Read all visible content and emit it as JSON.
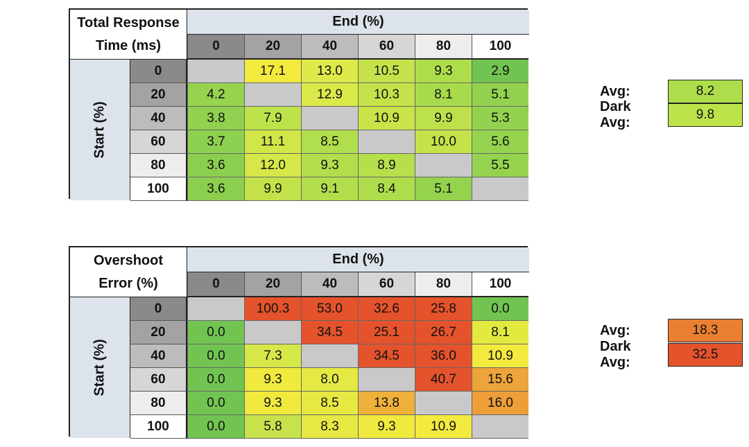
{
  "chart_data": [
    {
      "type": "table",
      "title": [
        "Total Response",
        "Time (ms)"
      ],
      "col_header": "End (%)",
      "row_header": "Start (%)",
      "columns": [
        "0",
        "20",
        "40",
        "60",
        "80",
        "100"
      ],
      "rows": [
        "0",
        "20",
        "40",
        "60",
        "80",
        "100"
      ],
      "values": [
        [
          "",
          "17.1",
          "13.0",
          "10.5",
          "9.3",
          "2.9"
        ],
        [
          "4.2",
          "",
          "12.9",
          "10.3",
          "8.1",
          "5.1"
        ],
        [
          "3.8",
          "7.9",
          "",
          "10.9",
          "9.9",
          "5.3"
        ],
        [
          "3.7",
          "11.1",
          "8.5",
          "",
          "10.0",
          "5.6"
        ],
        [
          "3.6",
          "12.0",
          "9.3",
          "8.9",
          "",
          "5.5"
        ],
        [
          "3.6",
          "9.9",
          "9.1",
          "8.4",
          "5.1",
          ""
        ]
      ],
      "colors": [
        [
          "#c9c9c9",
          "#f3ea3f",
          "#ddea4a",
          "#c6e24a",
          "#aedd4c",
          "#72c452"
        ],
        [
          "#96d34e",
          "#c9c9c9",
          "#dbe948",
          "#c6e24a",
          "#a8db4c",
          "#93d24e"
        ],
        [
          "#90d14f",
          "#bde34b",
          "#c9c9c9",
          "#c8e449",
          "#bce14b",
          "#93d24e"
        ],
        [
          "#8ed04f",
          "#d3e648",
          "#b0de4c",
          "#c9c9c9",
          "#c4e24a",
          "#95d34e"
        ],
        [
          "#8ccf4f",
          "#d6e748",
          "#b3de4c",
          "#b6df4b",
          "#c9c9c9",
          "#95d34e"
        ],
        [
          "#8ccf4f",
          "#c3e24a",
          "#b3de4c",
          "#aedd4c",
          "#95d34e",
          "#c9c9c9"
        ]
      ],
      "averages": [
        {
          "label": "Avg:",
          "value": "8.2",
          "color": "#aedd4c"
        },
        {
          "label": "Dark Avg:",
          "value": "9.8",
          "color": "#bde34b"
        }
      ]
    },
    {
      "type": "table",
      "title": [
        "Overshoot",
        "Error (%)"
      ],
      "col_header": "End (%)",
      "row_header": "Start (%)",
      "columns": [
        "0",
        "20",
        "40",
        "60",
        "80",
        "100"
      ],
      "rows": [
        "0",
        "20",
        "40",
        "60",
        "80",
        "100"
      ],
      "values": [
        [
          "",
          "100.3",
          "53.0",
          "32.6",
          "25.8",
          "0.0"
        ],
        [
          "0.0",
          "",
          "34.5",
          "25.1",
          "26.7",
          "8.1"
        ],
        [
          "0.0",
          "7.3",
          "",
          "34.5",
          "36.0",
          "10.9"
        ],
        [
          "0.0",
          "9.3",
          "8.0",
          "",
          "40.7",
          "15.6"
        ],
        [
          "0.0",
          "9.3",
          "8.5",
          "13.8",
          "",
          "16.0"
        ],
        [
          "0.0",
          "5.8",
          "8.3",
          "9.3",
          "10.9",
          ""
        ]
      ],
      "colors": [
        [
          "#c9c9c9",
          "#e4532b",
          "#e4532b",
          "#e4532b",
          "#e4532b",
          "#72c452"
        ],
        [
          "#72c452",
          "#c9c9c9",
          "#e4532b",
          "#e4532b",
          "#e4532b",
          "#e2ea40"
        ],
        [
          "#72c452",
          "#d6e748",
          "#c9c9c9",
          "#e4532b",
          "#e4532b",
          "#f3ea3f"
        ],
        [
          "#72c452",
          "#f0ea3e",
          "#e4e944",
          "#c9c9c9",
          "#e4532b",
          "#eda43a"
        ],
        [
          "#72c452",
          "#f0ea3e",
          "#e6e943",
          "#efb13a",
          "#c9c9c9",
          "#ed9e39"
        ],
        [
          "#72c452",
          "#c7e24a",
          "#e6e943",
          "#f0ea3e",
          "#f3ea3f",
          "#c9c9c9"
        ]
      ],
      "averages": [
        {
          "label": "Avg:",
          "value": "18.3",
          "color": "#ea7f32"
        },
        {
          "label": "Dark Avg:",
          "value": "32.5",
          "color": "#e4532b"
        }
      ]
    }
  ],
  "style": {
    "header_gradient": [
      "#8a8a8a",
      "#a3a3a3",
      "#bcbcbc",
      "#d6d6d6",
      "#ededed",
      "#ffffff"
    ]
  }
}
